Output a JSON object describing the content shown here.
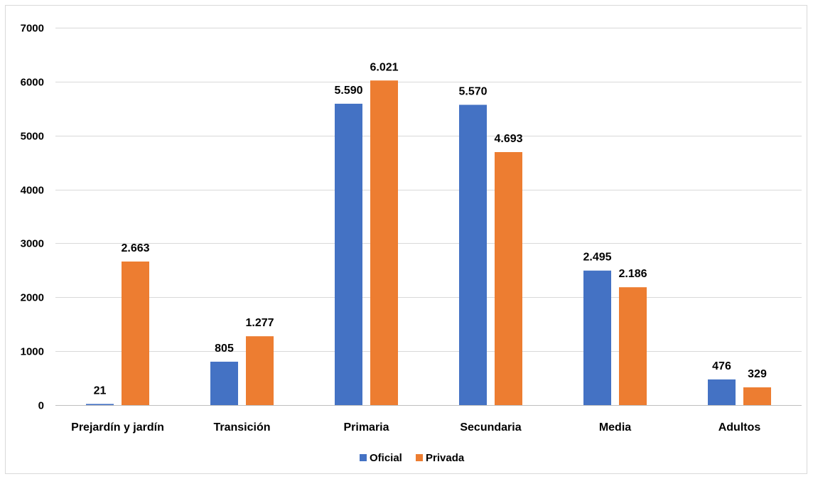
{
  "chart_data": {
    "type": "bar",
    "categories": [
      "Prejardín y jardín",
      "Transición",
      "Primaria",
      "Secundaria",
      "Media",
      "Adultos"
    ],
    "series": [
      {
        "name": "Oficial",
        "color": "#4472c4",
        "values": [
          21,
          805,
          5590,
          5570,
          2495,
          476
        ],
        "labels": [
          "21",
          "805",
          "5.590",
          "5.570",
          "2.495",
          "476"
        ]
      },
      {
        "name": "Privada",
        "color": "#ed7d31",
        "values": [
          2663,
          1277,
          6021,
          4693,
          2186,
          329
        ],
        "labels": [
          "2.663",
          "1.277",
          "6.021",
          "4.693",
          "2.186",
          "329"
        ]
      }
    ],
    "yticks": [
      0,
      1000,
      2000,
      3000,
      4000,
      5000,
      6000,
      7000
    ],
    "ylim": [
      0,
      7000
    ],
    "grid": true,
    "legend": "bottom-center"
  }
}
